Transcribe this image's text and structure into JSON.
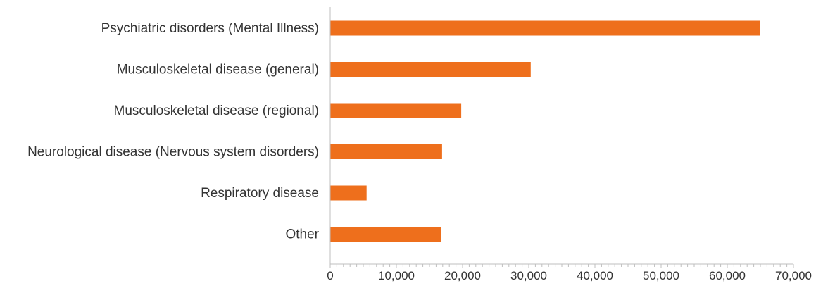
{
  "colors": {
    "bar": "#ee6f1c",
    "axis": "#bfbfbf",
    "text": "#333333"
  },
  "chart_data": {
    "type": "bar",
    "orientation": "horizontal",
    "title": "",
    "xlabel": "",
    "ylabel": "",
    "categories": [
      "Psychiatric disorders (Mental Illness)",
      "Musculoskeletal disease (general)",
      "Musculoskeletal disease (regional)",
      "Neurological disease (Nervous system disorders)",
      "Respiratory disease",
      "Other"
    ],
    "values": [
      65000,
      30300,
      19800,
      16900,
      5500,
      16800
    ],
    "xlim": [
      0,
      70000
    ],
    "x_ticks": [
      0,
      10000,
      20000,
      30000,
      40000,
      50000,
      60000,
      70000
    ],
    "x_tick_labels": [
      "0",
      "10,000",
      "20,000",
      "30,000",
      "40,000",
      "50,000",
      "60,000",
      "70,000"
    ],
    "grid": false,
    "legend": "none"
  }
}
